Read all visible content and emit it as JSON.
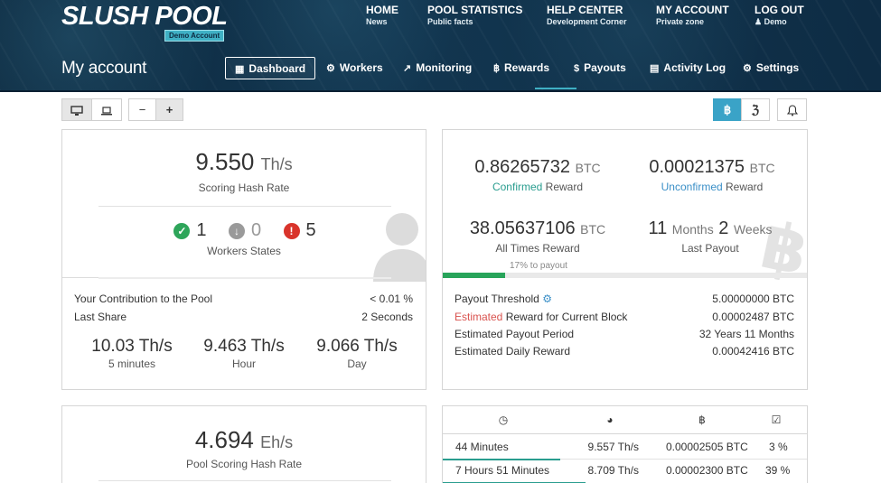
{
  "header": {
    "logo": "SLUSH POOL",
    "logo_badge": "Demo Account",
    "page_title": "My account",
    "top_nav": [
      {
        "title": "HOME",
        "sub": "News"
      },
      {
        "title": "POOL STATISTICS",
        "sub": "Public facts"
      },
      {
        "title": "HELP CENTER",
        "sub": "Development Corner"
      },
      {
        "title": "MY ACCOUNT",
        "sub": "Private zone"
      },
      {
        "title": "LOG OUT",
        "sub": "Demo",
        "sub_icon": "user-icon"
      }
    ],
    "main_nav": [
      {
        "label": "Dashboard",
        "icon": "dashboard-icon",
        "active": true
      },
      {
        "label": "Workers",
        "icon": "cogs-icon"
      },
      {
        "label": "Monitoring",
        "icon": "chart-icon"
      },
      {
        "label": "Rewards",
        "icon": "bitcoin-icon"
      },
      {
        "label": "Payouts",
        "icon": "dollar-icon"
      },
      {
        "label": "Activity Log",
        "icon": "book-icon"
      },
      {
        "label": "Settings",
        "icon": "gear-icon"
      }
    ]
  },
  "toolbar": {
    "zoom_out": "−",
    "zoom_in": "+",
    "btc_label": "฿",
    "zec_label": "ℨ"
  },
  "hashrate_panel": {
    "value": "9.550",
    "unit": "Th/s",
    "caption": "Scoring Hash Rate",
    "workers": {
      "ok": "1",
      "off": "0",
      "error": "5"
    },
    "workers_caption": "Workers States",
    "contribution_label": "Your Contribution to the Pool",
    "contribution_value": "< 0.01 %",
    "last_share_label": "Last Share",
    "last_share_value": "2 Seconds",
    "rates": [
      {
        "value": "10.03 Th/s",
        "caption": "5 minutes"
      },
      {
        "value": "9.463 Th/s",
        "caption": "Hour"
      },
      {
        "value": "9.066 Th/s",
        "caption": "Day"
      }
    ]
  },
  "rewards_panel": {
    "confirmed": {
      "value": "0.86265732",
      "unit": "BTC",
      "caption_hl": "Confirmed",
      "caption_rest": " Reward"
    },
    "unconfirmed": {
      "value": "0.00021375",
      "unit": "BTC",
      "caption_hl": "Unconfirmed",
      "caption_rest": " Reward"
    },
    "all_times": {
      "value": "38.05637106",
      "unit": "BTC",
      "caption": "All Times Reward"
    },
    "last_payout": {
      "n1": "11",
      "u1": "Months",
      "n2": "2",
      "u2": "Weeks",
      "caption": "Last Payout"
    },
    "progress_label": "17% to payout",
    "progress_fraction": 0.17,
    "rows": [
      {
        "label": "Payout Threshold",
        "value": "5.00000000 BTC",
        "has_gear": true
      },
      {
        "label_hl": "Estimated",
        "label": " Reward for Current Block",
        "value": "0.00002487 BTC"
      },
      {
        "label": "Estimated Payout Period",
        "value": "32 Years 11 Months"
      },
      {
        "label": "Estimated Daily Reward",
        "value": "0.00042416 BTC"
      }
    ]
  },
  "pool_panel": {
    "value": "4.694",
    "unit": "Eh/s",
    "caption": "Pool Scoring Hash Rate"
  },
  "blocks_table": {
    "headers": [
      {
        "icon": "clock-icon",
        "glyph": "◷"
      },
      {
        "icon": "pie-icon",
        "glyph": "◕"
      },
      {
        "icon": "bitcoin-icon",
        "glyph": "฿"
      },
      {
        "icon": "check-icon",
        "glyph": "☑"
      }
    ],
    "rows": [
      {
        "duration": "44 Minutes",
        "rate": "9.557 Th/s",
        "reward": "0.00002505 BTC",
        "share": "3 %"
      },
      {
        "duration": "7 Hours 51 Minutes",
        "rate": "8.709 Th/s",
        "reward": "0.00002300 BTC",
        "share": "39 %"
      }
    ]
  }
}
